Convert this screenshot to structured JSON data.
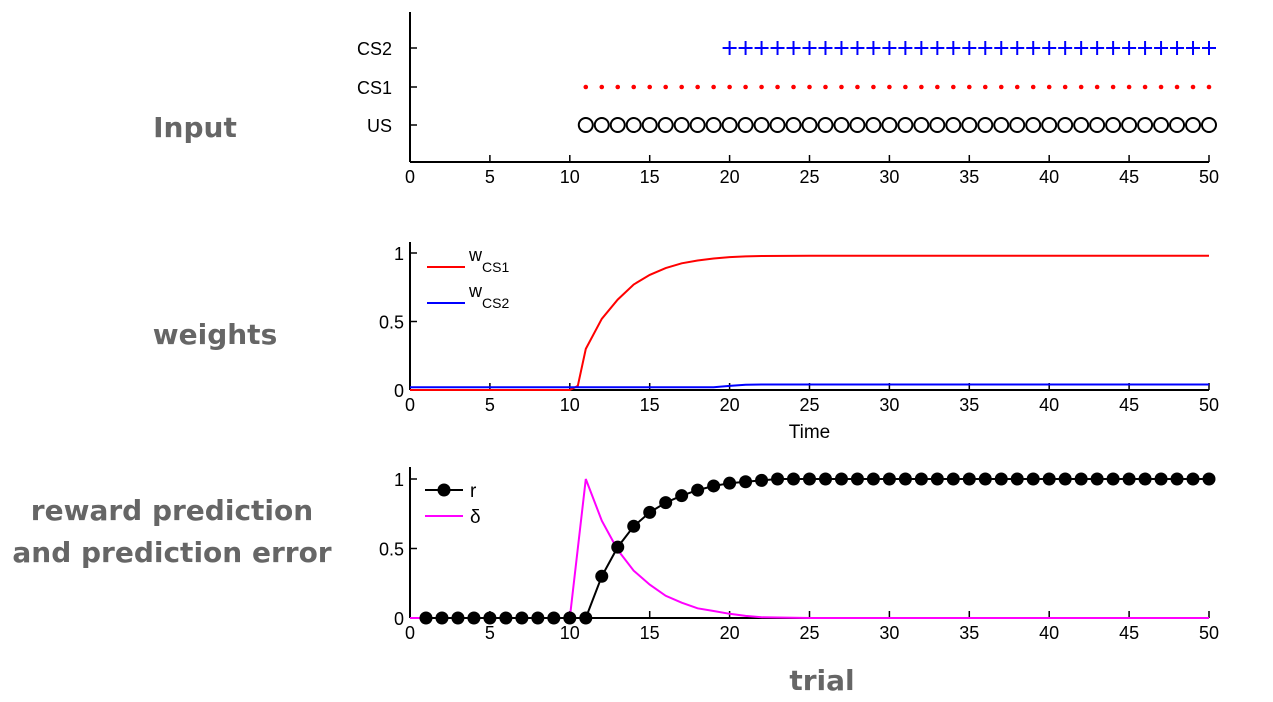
{
  "side_labels": {
    "input": "Input",
    "weights": "weights",
    "rpe_line1": "reward prediction",
    "rpe_line2": "and prediction error",
    "trial": "trial"
  },
  "colors": {
    "cs2": "#0000ff",
    "cs1": "#ff0000",
    "us": "#000000",
    "w_cs1": "#ff0000",
    "w_cs2": "#0000ff",
    "r": "#000000",
    "delta": "#ff00ff",
    "side_label": "#666666"
  },
  "chart_data": [
    {
      "type": "scatter",
      "title": "",
      "xlabel": "",
      "ylabel": "",
      "xlim": [
        0,
        50
      ],
      "xticks": [
        "0",
        "5",
        "10",
        "15",
        "20",
        "25",
        "30",
        "35",
        "40",
        "45",
        "50"
      ],
      "yticks": [
        "US",
        "CS1",
        "CS2"
      ],
      "series": [
        {
          "key": "CS2",
          "marker": "plus",
          "x_start": 20,
          "x_end": 50
        },
        {
          "key": "CS1",
          "marker": "dot",
          "x_start": 11,
          "x_end": 50
        },
        {
          "key": "US",
          "marker": "circle",
          "x_start": 11,
          "x_end": 50
        }
      ]
    },
    {
      "type": "line",
      "title": "",
      "xlabel": "Time",
      "ylabel": "",
      "xlim": [
        0,
        50
      ],
      "ylim": [
        0,
        1
      ],
      "xticks": [
        "0",
        "5",
        "10",
        "15",
        "20",
        "25",
        "30",
        "35",
        "40",
        "45",
        "50"
      ],
      "yticks": [
        "0",
        "0.5",
        "1"
      ],
      "legend_position": "top-left",
      "series": [
        {
          "name": "w",
          "subscript": "CS1",
          "x": [
            0,
            10,
            10.5,
            11,
            12,
            13,
            14,
            15,
            16,
            17,
            18,
            19,
            20,
            21,
            22,
            25,
            30,
            40,
            50
          ],
          "values": [
            0,
            0,
            0.03,
            0.3,
            0.52,
            0.66,
            0.77,
            0.84,
            0.89,
            0.925,
            0.945,
            0.96,
            0.97,
            0.975,
            0.978,
            0.98,
            0.98,
            0.98,
            0.98
          ]
        },
        {
          "name": "w",
          "subscript": "CS2",
          "x": [
            0,
            10,
            19,
            20,
            21,
            22,
            25,
            30,
            40,
            50
          ],
          "values": [
            0.02,
            0.02,
            0.02,
            0.03,
            0.038,
            0.04,
            0.04,
            0.04,
            0.04,
            0.04
          ]
        }
      ]
    },
    {
      "type": "line",
      "title": "",
      "xlabel": "",
      "ylabel": "",
      "xlim": [
        0,
        50
      ],
      "ylim": [
        0,
        1
      ],
      "xticks": [
        "0",
        "5",
        "10",
        "15",
        "20",
        "25",
        "30",
        "35",
        "40",
        "45",
        "50"
      ],
      "yticks": [
        "0",
        "0.5",
        "1"
      ],
      "legend_position": "top-left",
      "series": [
        {
          "name": "r",
          "marker": "filled-circle",
          "x": [
            1,
            2,
            3,
            4,
            5,
            6,
            7,
            8,
            9,
            10,
            11,
            12,
            13,
            14,
            15,
            16,
            17,
            18,
            19,
            20,
            21,
            22,
            23,
            24,
            25,
            26,
            27,
            28,
            29,
            30,
            31,
            32,
            33,
            34,
            35,
            36,
            37,
            38,
            39,
            40,
            41,
            42,
            43,
            44,
            45,
            46,
            47,
            48,
            49,
            50
          ],
          "values": [
            0,
            0,
            0,
            0,
            0,
            0,
            0,
            0,
            0,
            0,
            0,
            0.3,
            0.51,
            0.66,
            0.76,
            0.83,
            0.88,
            0.92,
            0.95,
            0.97,
            0.98,
            0.99,
            1,
            1,
            1,
            1,
            1,
            1,
            1,
            1,
            1,
            1,
            1,
            1,
            1,
            1,
            1,
            1,
            1,
            1,
            1,
            1,
            1,
            1,
            1,
            1,
            1,
            1,
            1,
            1
          ]
        },
        {
          "name": "δ",
          "x": [
            0,
            10,
            11,
            12,
            13,
            14,
            15,
            16,
            17,
            18,
            19,
            20,
            21,
            22,
            25,
            30,
            40,
            50
          ],
          "values": [
            0,
            0,
            1,
            0.7,
            0.49,
            0.34,
            0.24,
            0.16,
            0.11,
            0.07,
            0.05,
            0.03,
            0.015,
            0.005,
            0,
            0,
            0,
            0
          ]
        }
      ]
    }
  ]
}
